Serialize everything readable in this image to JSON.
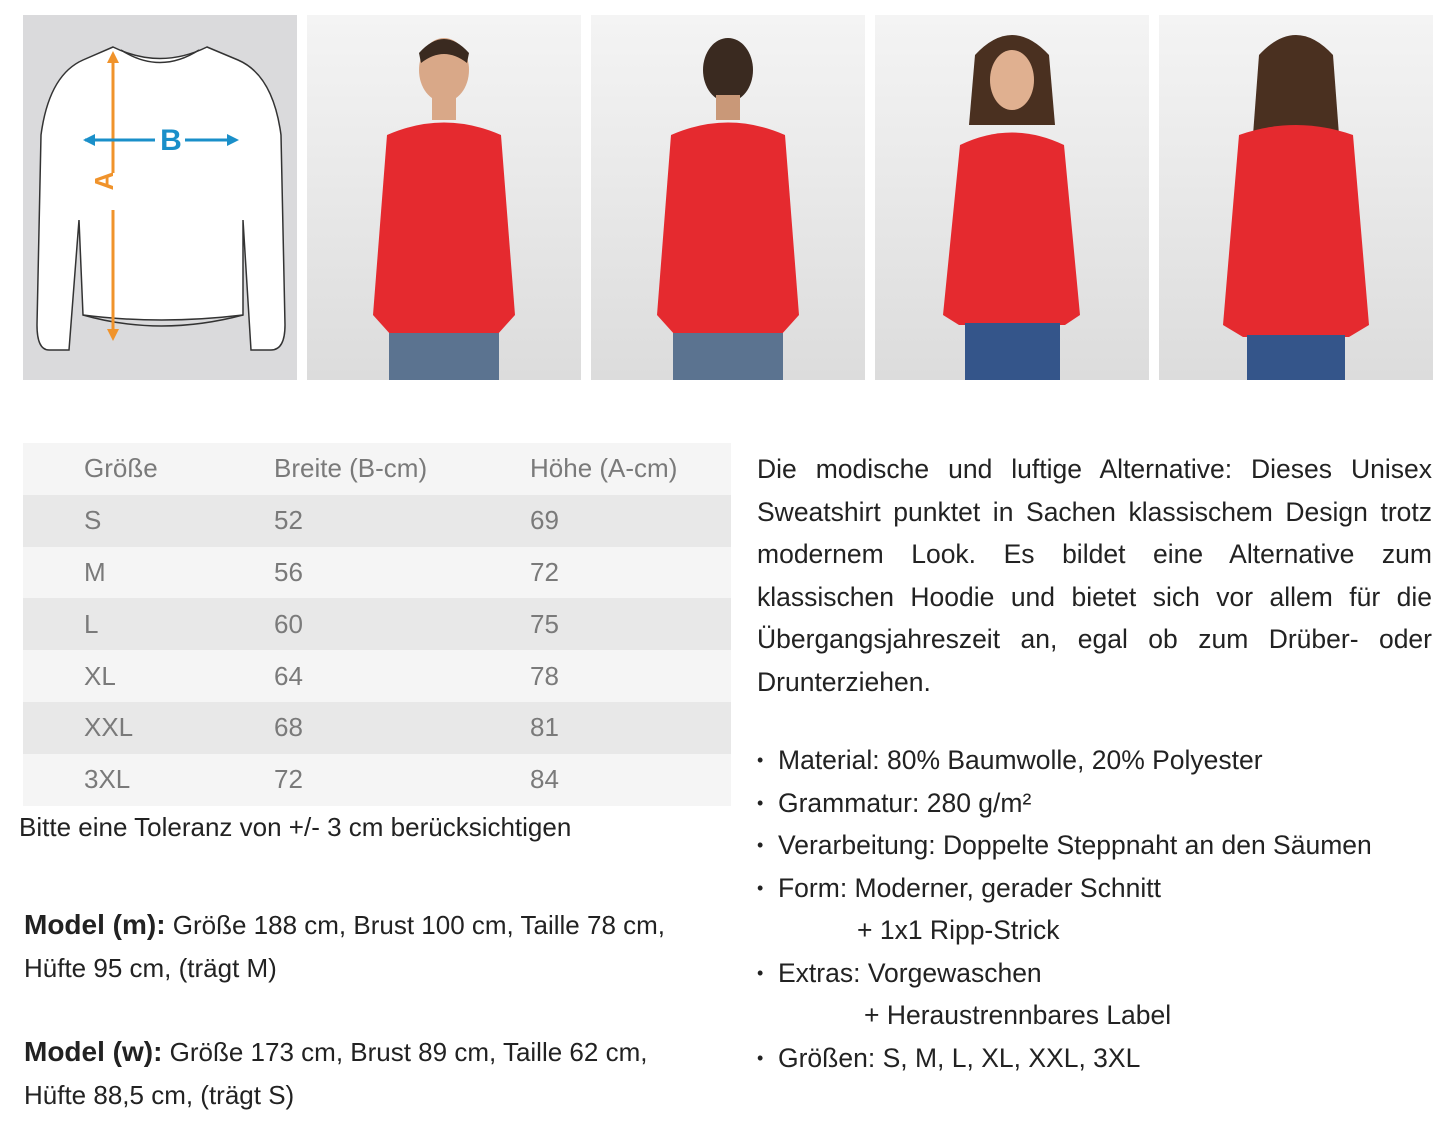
{
  "diagram": {
    "label_a": "A",
    "label_b": "B",
    "color_a": "#f0932b",
    "color_b": "#1a8fc9"
  },
  "photos": [
    {
      "name": "male-model-front",
      "garment_color": "#e52a2f"
    },
    {
      "name": "male-model-back",
      "garment_color": "#e52a2f"
    },
    {
      "name": "female-model-front",
      "garment_color": "#e52a2f"
    },
    {
      "name": "female-model-back",
      "garment_color": "#e52a2f"
    }
  ],
  "size_table": {
    "headers": [
      "Größe",
      "Breite (B-cm)",
      "Höhe (A-cm)"
    ],
    "rows": [
      [
        "S",
        "52",
        "69"
      ],
      [
        "M",
        "56",
        "72"
      ],
      [
        "L",
        "60",
        "75"
      ],
      [
        "XL",
        "64",
        "78"
      ],
      [
        "XXL",
        "68",
        "81"
      ],
      [
        "3XL",
        "72",
        "84"
      ]
    ]
  },
  "tolerance": "Bitte eine Toleranz von +/- 3 cm berücksichtigen",
  "model_m": {
    "label": "Model (m):",
    "text": " Größe 188 cm, Brust 100 cm, Taille 78 cm, Hüfte 95 cm, (trägt M)"
  },
  "model_w": {
    "label": "Model (w):",
    "text": " Größe 173 cm, Brust 89 cm, Taille 62 cm, Hüfte 88,5 cm, (trägt S)"
  },
  "description": "Die modische und luftige Alternative: Dieses Unisex Sweatshirt punktet in Sachen klassischem Design trotz modernem Look. Es bildet eine Alternative zum klassischen Hoodie und bietet sich vor allem für die Übergangsjahreszeit an, egal ob zum Drüber- oder Drunterziehen.",
  "features": [
    {
      "text": "Material: 80% Baumwolle, 20% Polyester"
    },
    {
      "text": "Grammatur: 280 g/m²"
    },
    {
      "text": "Verarbeitung: Doppelte Steppnaht an den Säumen"
    },
    {
      "text": "Form: Moderner, gerader Schnitt"
    },
    {
      "text": "+ 1x1 Ripp-Strick",
      "sub": true
    },
    {
      "text": "Extras: Vorgewaschen"
    },
    {
      "text": "+ Heraustrennbares Label",
      "sub": true
    },
    {
      "text": "Größen:  S, M, L, XL, XXL, 3XL"
    }
  ]
}
